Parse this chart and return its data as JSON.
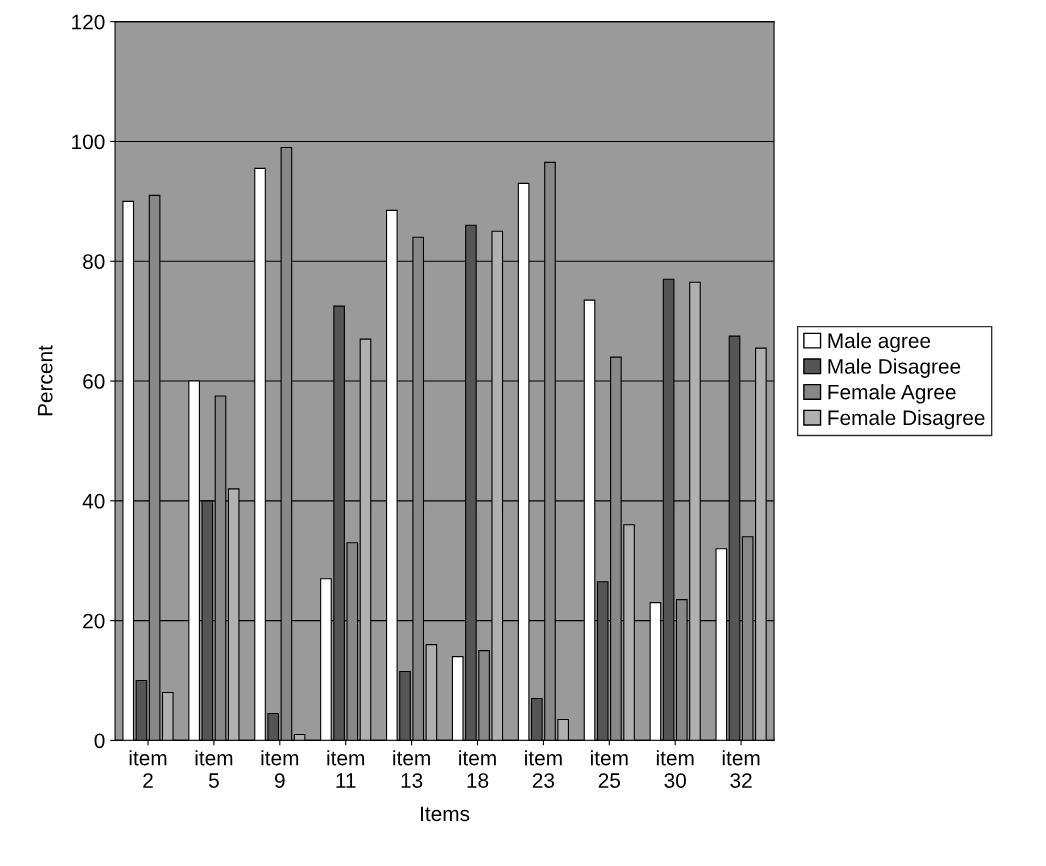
{
  "chart_data": {
    "type": "bar",
    "xlabel": "Items",
    "ylabel": "Percent",
    "categories": [
      "item\n2",
      "item\n5",
      "item\n9",
      "item\n11",
      "item\n13",
      "item\n18",
      "item\n23",
      "item\n25",
      "item\n30",
      "item\n32"
    ],
    "series": [
      {
        "name": "Male agree",
        "color": "#ffffff",
        "values": [
          90,
          60,
          95.5,
          27,
          88.5,
          14,
          93,
          73.5,
          23,
          32
        ]
      },
      {
        "name": "Male Disagree",
        "color": "#555555",
        "values": [
          10,
          40,
          4.5,
          72.5,
          11.5,
          86,
          7,
          26.5,
          77,
          67.5
        ]
      },
      {
        "name": "Female Agree",
        "color": "#888888",
        "values": [
          91,
          57.5,
          99,
          33,
          84,
          15,
          96.5,
          64,
          23.5,
          34
        ]
      },
      {
        "name": "Female Disagree",
        "color": "#b0b0b0",
        "values": [
          8,
          42,
          1,
          67,
          16,
          85,
          3.5,
          36,
          76.5,
          65.5
        ]
      }
    ],
    "ylim": [
      0,
      120
    ],
    "yticks": [
      0,
      20,
      40,
      60,
      80,
      100,
      120
    ],
    "grid": "y",
    "legend": "right"
  }
}
